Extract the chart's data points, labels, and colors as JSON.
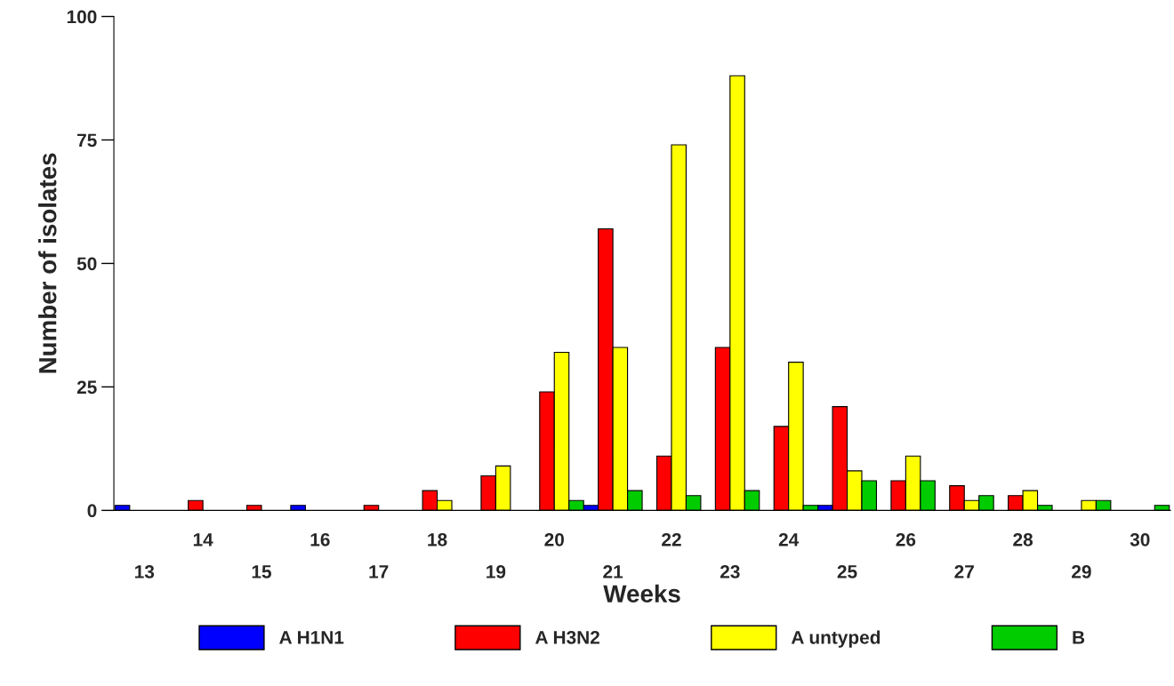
{
  "chart_data": {
    "type": "bar",
    "xlabel": "Weeks",
    "ylabel": "Number of isolates",
    "categories": [
      "13",
      "14",
      "15",
      "16",
      "17",
      "18",
      "19",
      "20",
      "21",
      "22",
      "23",
      "24",
      "25",
      "26",
      "27",
      "28",
      "29",
      "30"
    ],
    "series": [
      {
        "name": "A H1N1",
        "color": "#0000ff",
        "values": [
          1,
          null,
          null,
          1,
          null,
          null,
          null,
          null,
          1,
          null,
          null,
          null,
          1,
          null,
          null,
          null,
          null,
          null
        ]
      },
      {
        "name": "A H3N2",
        "color": "#ff0000",
        "values": [
          null,
          2,
          1,
          null,
          1,
          4,
          7,
          24,
          57,
          11,
          33,
          17,
          21,
          6,
          5,
          3,
          null,
          null
        ]
      },
      {
        "name": "A untyped",
        "color": "#ffff00",
        "values": [
          null,
          null,
          null,
          null,
          null,
          2,
          9,
          32,
          33,
          74,
          88,
          30,
          8,
          11,
          2,
          4,
          2,
          null
        ]
      },
      {
        "name": "B",
        "color": "#00cc00",
        "values": [
          null,
          null,
          null,
          null,
          null,
          null,
          null,
          2,
          4,
          3,
          4,
          1,
          6,
          6,
          3,
          1,
          2,
          1
        ]
      }
    ],
    "ylim": [
      0,
      100
    ],
    "yticks": [
      0,
      25,
      50,
      75,
      100
    ],
    "grid": false,
    "legend": "bottom"
  }
}
